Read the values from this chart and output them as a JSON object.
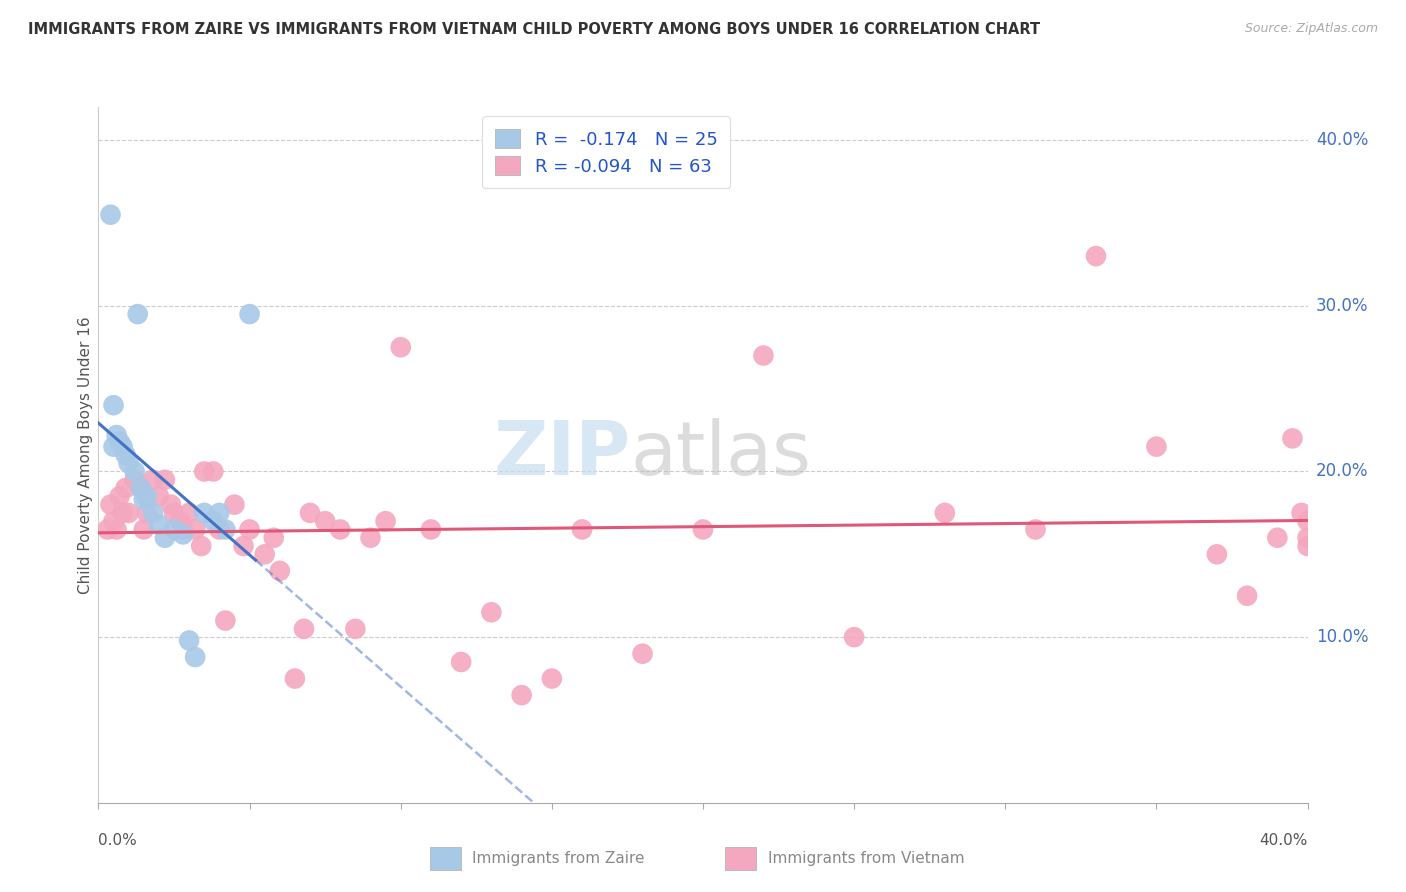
{
  "title": "IMMIGRANTS FROM ZAIRE VS IMMIGRANTS FROM VIETNAM CHILD POVERTY AMONG BOYS UNDER 16 CORRELATION CHART",
  "source": "Source: ZipAtlas.com",
  "ylabel": "Child Poverty Among Boys Under 16",
  "r_zaire": -0.174,
  "n_zaire": 25,
  "r_vietnam": -0.094,
  "n_vietnam": 63,
  "color_zaire": "#a8c8e8",
  "color_vietnam": "#f4a8c0",
  "line_color_zaire": "#4472c4",
  "line_color_vietnam": "#e05878",
  "watermark_zip": "ZIP",
  "watermark_atlas": "atlas",
  "xmin": 0.0,
  "xmax": 0.4,
  "ymin": 0.0,
  "ymax": 0.42,
  "zaire_x": [
    0.004,
    0.005,
    0.005,
    0.006,
    0.007,
    0.008,
    0.009,
    0.01,
    0.012,
    0.013,
    0.014,
    0.015,
    0.016,
    0.018,
    0.02,
    0.022,
    0.025,
    0.028,
    0.03,
    0.032,
    0.035,
    0.038,
    0.04,
    0.042,
    0.05
  ],
  "zaire_y": [
    0.355,
    0.24,
    0.215,
    0.222,
    0.218,
    0.215,
    0.21,
    0.205,
    0.2,
    0.295,
    0.19,
    0.183,
    0.185,
    0.175,
    0.168,
    0.16,
    0.165,
    0.162,
    0.098,
    0.088,
    0.175,
    0.17,
    0.175,
    0.165,
    0.295
  ],
  "vietnam_x": [
    0.003,
    0.004,
    0.005,
    0.006,
    0.007,
    0.008,
    0.009,
    0.01,
    0.012,
    0.014,
    0.015,
    0.016,
    0.018,
    0.02,
    0.022,
    0.024,
    0.025,
    0.027,
    0.028,
    0.03,
    0.032,
    0.034,
    0.035,
    0.038,
    0.04,
    0.042,
    0.045,
    0.048,
    0.05,
    0.055,
    0.058,
    0.06,
    0.065,
    0.068,
    0.07,
    0.075,
    0.08,
    0.085,
    0.09,
    0.095,
    0.1,
    0.11,
    0.12,
    0.13,
    0.14,
    0.15,
    0.16,
    0.18,
    0.2,
    0.22,
    0.25,
    0.28,
    0.31,
    0.33,
    0.35,
    0.37,
    0.38,
    0.39,
    0.395,
    0.398,
    0.4,
    0.4,
    0.4
  ],
  "vietnam_y": [
    0.165,
    0.18,
    0.17,
    0.165,
    0.185,
    0.175,
    0.19,
    0.175,
    0.195,
    0.19,
    0.165,
    0.175,
    0.195,
    0.185,
    0.195,
    0.18,
    0.175,
    0.17,
    0.165,
    0.175,
    0.165,
    0.155,
    0.2,
    0.2,
    0.165,
    0.11,
    0.18,
    0.155,
    0.165,
    0.15,
    0.16,
    0.14,
    0.075,
    0.105,
    0.175,
    0.17,
    0.165,
    0.105,
    0.16,
    0.17,
    0.275,
    0.165,
    0.085,
    0.115,
    0.065,
    0.075,
    0.165,
    0.09,
    0.165,
    0.27,
    0.1,
    0.175,
    0.165,
    0.33,
    0.215,
    0.15,
    0.125,
    0.16,
    0.22,
    0.175,
    0.17,
    0.155,
    0.16
  ]
}
